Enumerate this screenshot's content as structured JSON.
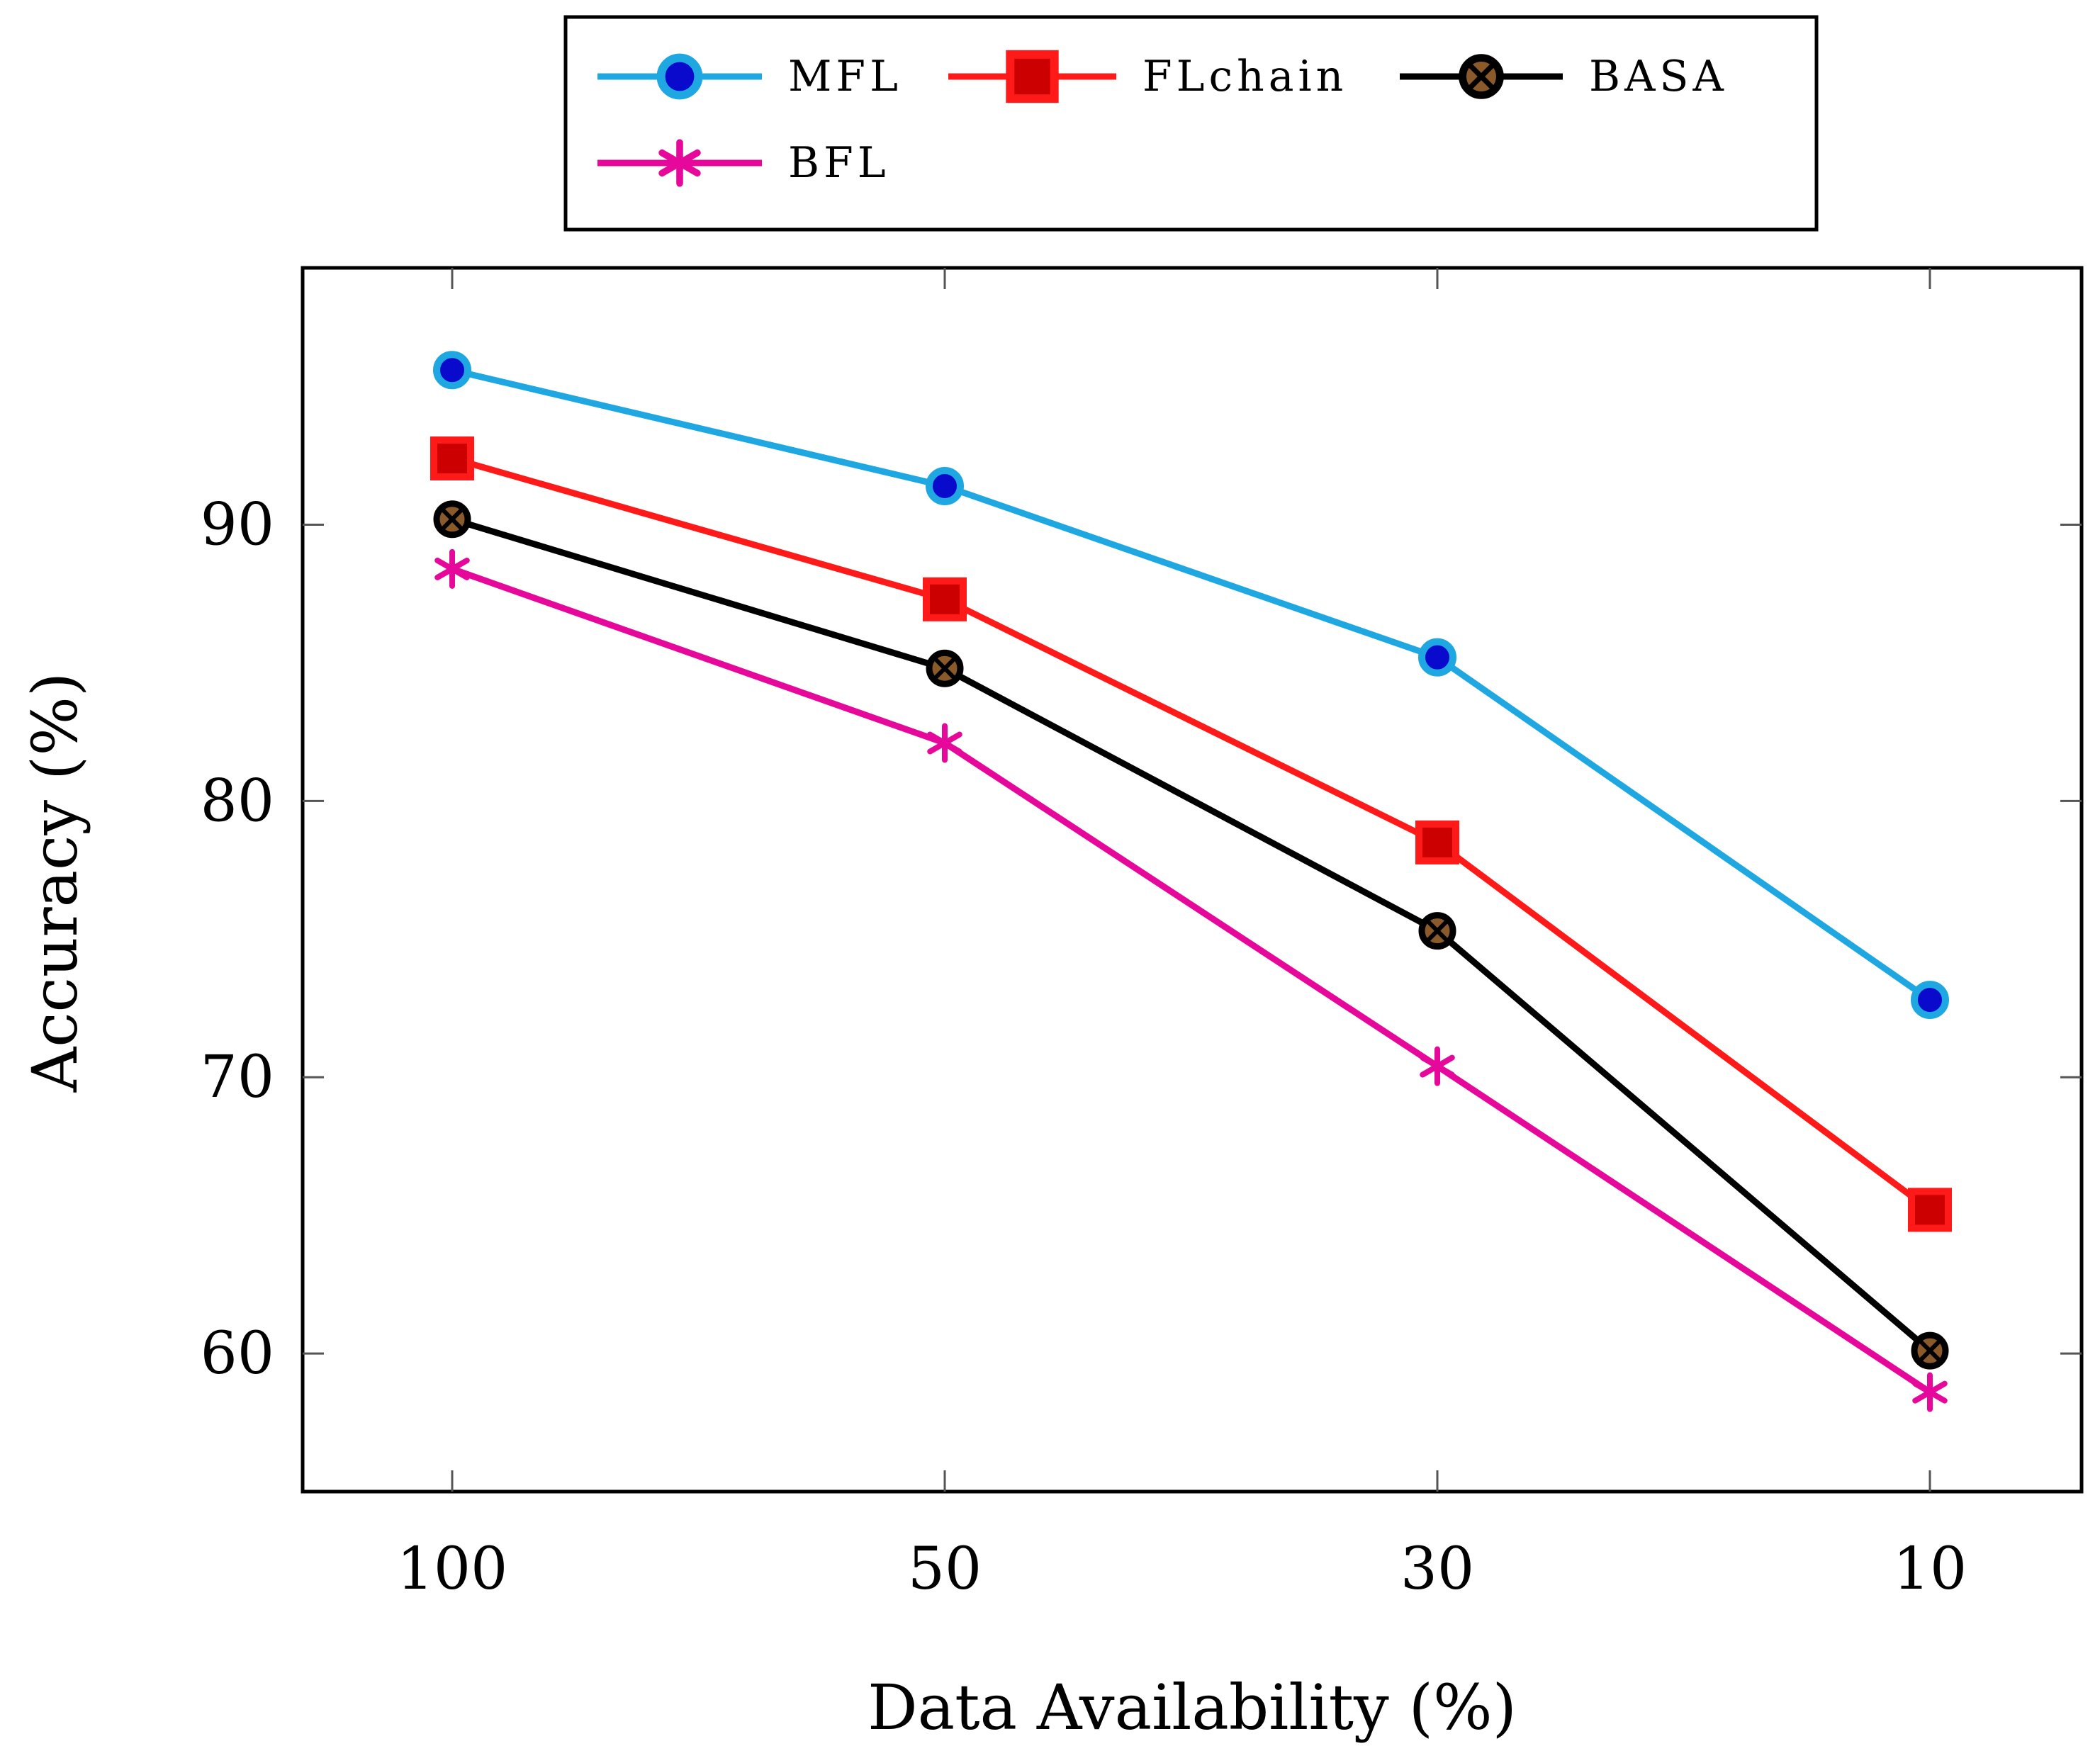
{
  "chart_data": {
    "type": "line",
    "title": "",
    "xlabel": "Data Availability (%)",
    "ylabel": "Accuracy (%)",
    "categories": [
      "100",
      "50",
      "30",
      "10"
    ],
    "ylim": [
      55,
      99.3
    ],
    "yticks": [
      60,
      70,
      80,
      90
    ],
    "grid": false,
    "legend_position": "top-center-outside",
    "series": [
      {
        "name": "MFL",
        "values": [
          95.6,
          91.4,
          85.2,
          72.8
        ],
        "color": "#1ea7e1",
        "marker_fill": "#0a0acd",
        "marker": "circle"
      },
      {
        "name": "FLchain",
        "values": [
          92.4,
          87.3,
          78.5,
          65.2
        ],
        "color": "#ff1a1a",
        "marker_fill": "#cc0000",
        "marker": "square"
      },
      {
        "name": "BASA",
        "values": [
          90.2,
          84.8,
          75.3,
          60.1
        ],
        "color": "#000000",
        "marker_fill": "#8b5a2b",
        "marker": "otimes"
      },
      {
        "name": "BFL",
        "values": [
          88.4,
          82.1,
          70.4,
          58.6
        ],
        "color": "#e6089b",
        "marker_fill": "#e6089b",
        "marker": "asterisk"
      }
    ]
  }
}
